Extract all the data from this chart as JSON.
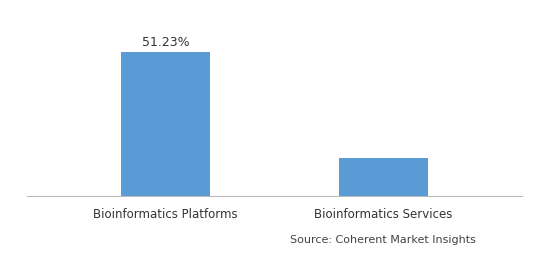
{
  "categories": [
    "Bioinformatics Platforms",
    "Bioinformatics Services"
  ],
  "values": [
    51.23,
    13.5
  ],
  "bar_color": "#5b9bd5",
  "bar_labels": [
    "51.23%",
    ""
  ],
  "source_text": "Source: Coherent Market Insights",
  "ylim": [
    0,
    62
  ],
  "bar_width": 0.18,
  "x_positions": [
    0.28,
    0.72
  ],
  "xlim": [
    0.0,
    1.0
  ],
  "label_fontsize": 9,
  "tick_fontsize": 8.5,
  "source_fontsize": 8,
  "background_color": "#ffffff",
  "spine_color": "#bbbbbb",
  "label_color": "#333333",
  "tick_color": "#333333",
  "source_color": "#444444"
}
